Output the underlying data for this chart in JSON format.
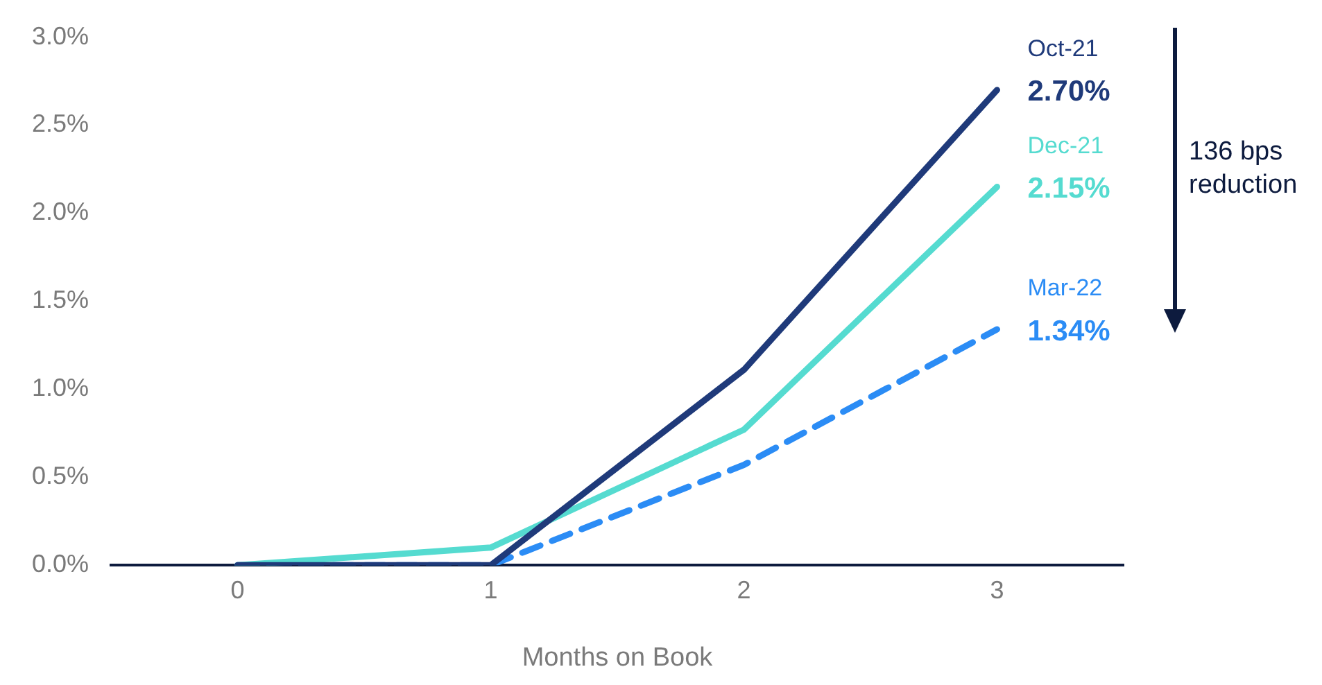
{
  "chart_data": {
    "type": "line",
    "xlabel": "Months on Book",
    "x": [
      0,
      1,
      2,
      3
    ],
    "series": [
      {
        "name": "Oct-21",
        "color": "#1f3a7a",
        "values": [
          0,
          0,
          1.11,
          2.7
        ],
        "value_labels": [
          null,
          null,
          null,
          "2.70%"
        ],
        "line_style": "solid"
      },
      {
        "name": "Dec-21",
        "color": "#55dbd0",
        "values": [
          0,
          0.1,
          0.77,
          2.15
        ],
        "value_labels": [
          null,
          null,
          null,
          "2.15%"
        ],
        "line_style": "solid"
      },
      {
        "name": "Mar-22",
        "color": "#2b8cf5",
        "values": [
          0,
          0,
          0.57,
          1.34
        ],
        "value_labels": [
          null,
          null,
          null,
          "1.34%"
        ],
        "line_style": "dashed"
      }
    ],
    "xlim": [
      -0.5,
      3.5
    ],
    "xticks": [
      0,
      1,
      2,
      3
    ],
    "ylim": [
      0,
      3
    ],
    "yticks": [
      {
        "value": 0,
        "label": "0.0%"
      },
      {
        "value": 0.5,
        "label": "0.5%"
      },
      {
        "value": 1,
        "label": "1.0%"
      },
      {
        "value": 1.5,
        "label": "1.5%"
      },
      {
        "value": 2,
        "label": "2.0%"
      },
      {
        "value": 2.5,
        "label": "2.5%"
      },
      {
        "value": 3,
        "label": "3.0%"
      }
    ],
    "grid": false,
    "legend": false,
    "marker": "none",
    "annotations": [
      "136 bps reduction"
    ]
  }
}
